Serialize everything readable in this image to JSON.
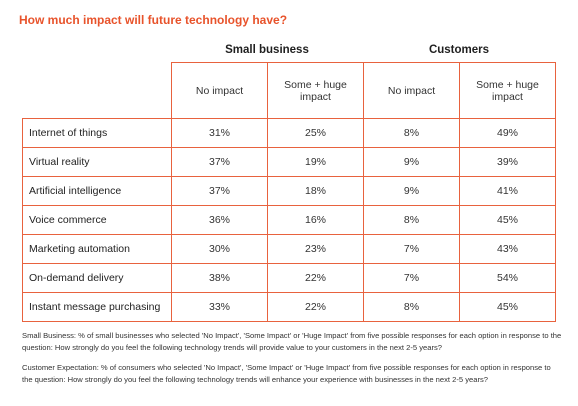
{
  "title": "How much impact will future technology have?",
  "groups": {
    "small_business": "Small business",
    "customers": "Customers"
  },
  "columns": {
    "sb_no_impact": "No impact",
    "sb_some_huge": "Some + huge impact",
    "c_no_impact": "No impact",
    "c_some_huge": "Some + huge impact"
  },
  "rows": [
    {
      "label": "Internet of things",
      "sb_no": "31%",
      "sb_some": "25%",
      "c_no": "8%",
      "c_some": "49%"
    },
    {
      "label": "Virtual reality",
      "sb_no": "37%",
      "sb_some": "19%",
      "c_no": "9%",
      "c_some": "39%"
    },
    {
      "label": "Artificial intelligence",
      "sb_no": "37%",
      "sb_some": "18%",
      "c_no": "9%",
      "c_some": "41%"
    },
    {
      "label": "Voice commerce",
      "sb_no": "36%",
      "sb_some": "16%",
      "c_no": "8%",
      "c_some": "45%"
    },
    {
      "label": "Marketing automation",
      "sb_no": "30%",
      "sb_some": "23%",
      "c_no": "7%",
      "c_some": "43%"
    },
    {
      "label": "On-demand delivery",
      "sb_no": "38%",
      "sb_some": "22%",
      "c_no": "7%",
      "c_some": "54%"
    },
    {
      "label": "Instant message purchasing",
      "sb_no": "33%",
      "sb_some": "22%",
      "c_no": "8%",
      "c_some": "45%"
    }
  ],
  "notes": {
    "small_business": "Small Business: % of small businesses who selected 'No Impact', 'Some Impact' or 'Huge Impact' from five possible responses for each option in response to the question: How strongly do you feel the following technology trends will provide value to your customers in the next 2-5 years?",
    "customer": "Customer Expectation: % of consumers who selected 'No Impact', 'Some Impact' or 'Huge Impact' from five possible responses for each option in response to the question: How strongly do you feel the following technology trends will enhance your experience with businesses in the next 2-5 years?"
  },
  "colors": {
    "accent": "#e8532b",
    "border": "#e8623e"
  }
}
